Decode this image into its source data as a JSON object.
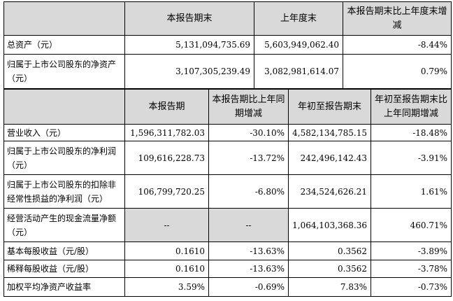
{
  "balance_table": {
    "headers": [
      "本报告期末",
      "上年度末",
      "本报告期末比上年度末增减"
    ],
    "rows": [
      [
        "总资产（元）",
        "5,131,094,735.69",
        "5,603,949,062.40",
        "-8.44%"
      ],
      [
        "归属于上市公司股东的净资产（元）",
        "3,107,305,239.49",
        "3,082,981,614.07",
        "0.79%"
      ]
    ]
  },
  "income_table": {
    "headers": [
      "本报告期",
      "本报告期比上年同期增减",
      "年初至报告期末",
      "年初至报告期末比上年同期增减"
    ],
    "rows": [
      [
        "营业收入（元）",
        "1,596,311,782.03",
        "-30.10%",
        "4,582,134,785.15",
        "-18.48%"
      ],
      [
        "归属于上市公司股东的净利润（元）",
        "109,616,228.73",
        "-13.72%",
        "242,496,142.43",
        "-3.91%"
      ],
      [
        "归属于上市公司股东的扣除非经常性损益的净利润（元）",
        "106,799,720.25",
        "-6.80%",
        "234,524,626.21",
        "1.61%"
      ],
      [
        "经营活动产生的现金流量净额（元）",
        "--",
        "--",
        "1,064,103,368.36",
        "460.71%"
      ],
      [
        "基本每股收益（元/股）",
        "0.1610",
        "-13.63%",
        "0.3562",
        "-3.89%"
      ],
      [
        "稀释每股收益（元/股）",
        "0.1610",
        "-13.63%",
        "0.3562",
        "-3.78%"
      ],
      [
        "加权平均净资产收益率",
        "3.59%",
        "-0.69%",
        "7.83%",
        "-0.73%"
      ]
    ]
  }
}
